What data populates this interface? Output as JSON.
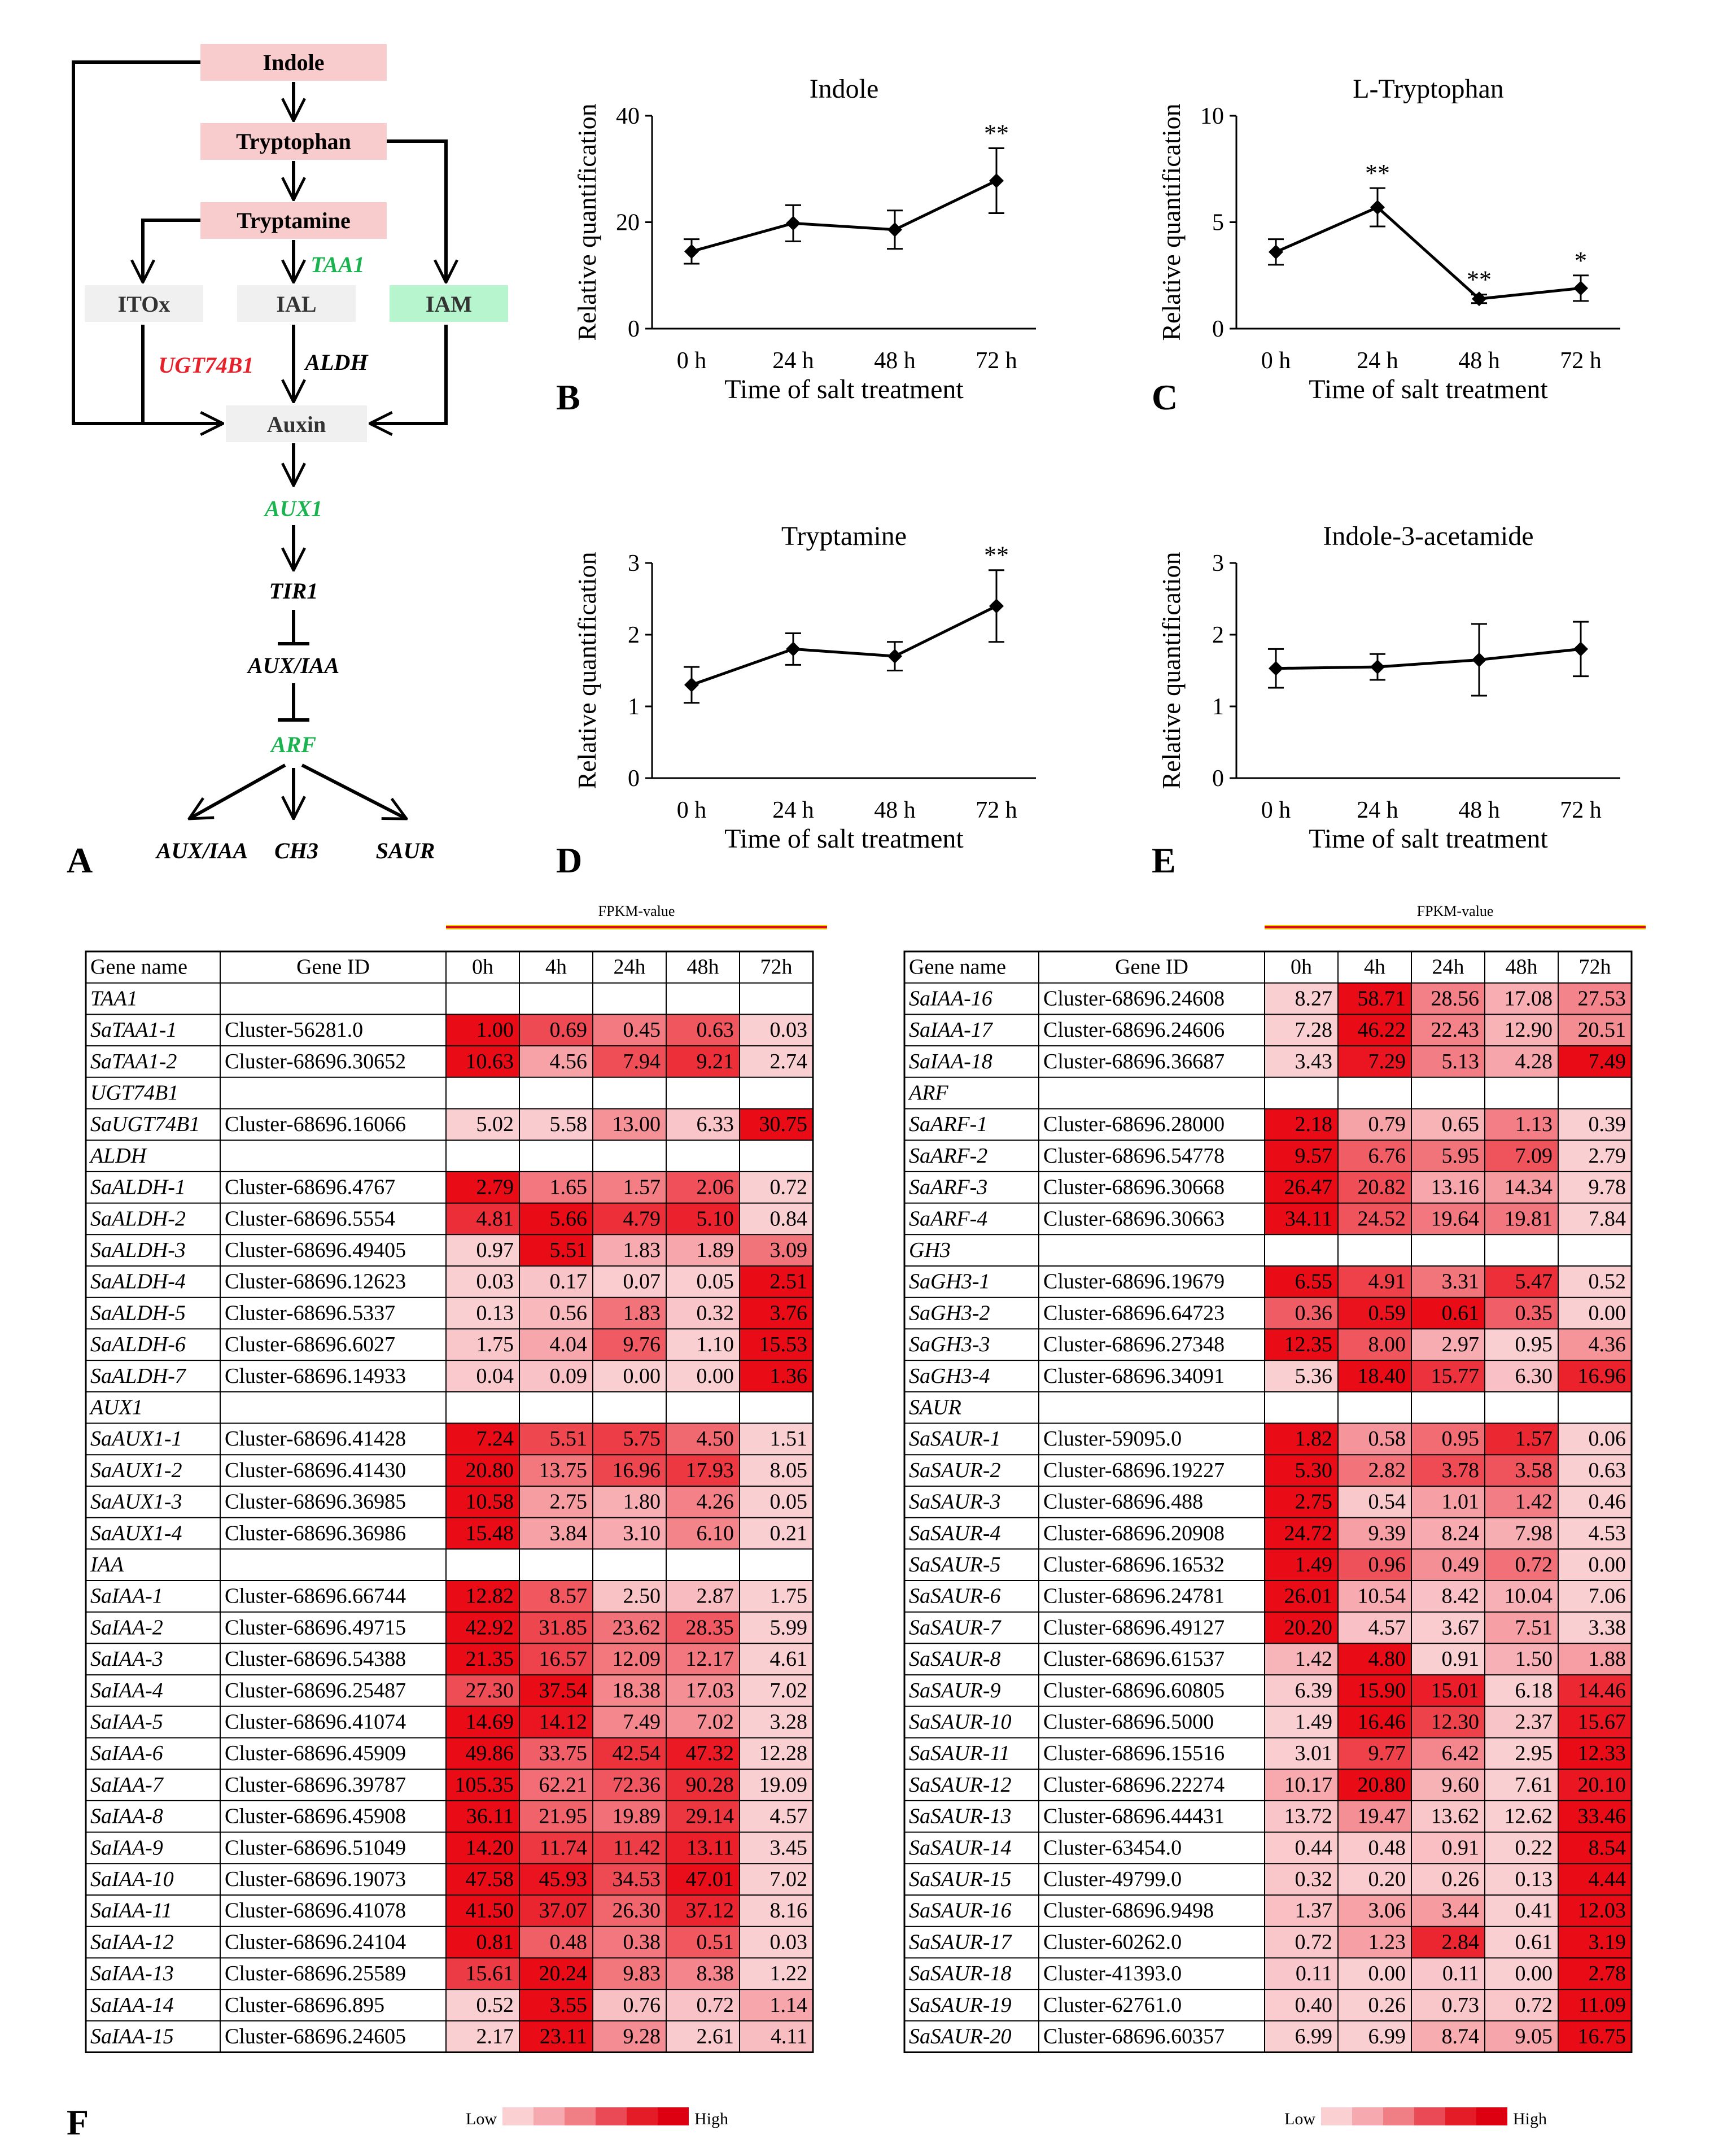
{
  "panel_letters": {
    "A": "A",
    "B": "B",
    "C": "C",
    "D": "D",
    "E": "E",
    "F": "F"
  },
  "pathway": {
    "indole": "Indole",
    "tryptophan": "Tryptophan",
    "tryptamine": "Tryptamine",
    "itox": "ITOx",
    "ial": "IAL",
    "iam": "IAM",
    "auxin": "Auxin",
    "taa1": "TAA1",
    "ugt74b1": "UGT74B1",
    "aldh": "ALDH",
    "aux1": "AUX1",
    "tir1": "TIR1",
    "auxiaa": "AUX/IAA",
    "arf": "ARF",
    "out1": "AUX/IAA",
    "out2": "CH3",
    "out3": "SAUR",
    "colors": {
      "metabolite": "#f8cccc",
      "iam": "#b7f5cf",
      "neutral": "#f0f0f0",
      "green": "#1bb350",
      "red": "#e8202a"
    }
  },
  "chart_data": [
    {
      "type": "line",
      "title": "Indole",
      "xlabel": "Time of salt treatment",
      "ylabel": "Relative quantification",
      "categories": [
        "0 h",
        "24 h",
        "48 h",
        "72 h"
      ],
      "values": [
        14.5,
        19.8,
        18.6,
        27.8
      ],
      "errors": [
        2.3,
        3.4,
        3.6,
        6.1
      ],
      "sig": [
        "",
        "",
        "",
        "**"
      ],
      "ylim": [
        0,
        40
      ],
      "yticks": [
        "0",
        "20",
        "40"
      ]
    },
    {
      "type": "line",
      "title": "L-Tryptophan",
      "xlabel": "Time of salt treatment",
      "ylabel": "Relative quantification",
      "categories": [
        "0 h",
        "24 h",
        "48 h",
        "72 h"
      ],
      "values": [
        3.6,
        5.7,
        1.4,
        1.9
      ],
      "errors": [
        0.6,
        0.9,
        0.2,
        0.6
      ],
      "sig": [
        "",
        "**",
        "**",
        "*"
      ],
      "ylim": [
        0,
        10
      ],
      "yticks": [
        "0",
        "5",
        "10"
      ]
    },
    {
      "type": "line",
      "title": "Tryptamine",
      "xlabel": "Time of salt treatment",
      "ylabel": "Relative quantification",
      "categories": [
        "0 h",
        "24 h",
        "48 h",
        "72 h"
      ],
      "values": [
        1.3,
        1.8,
        1.7,
        2.4
      ],
      "errors": [
        0.25,
        0.22,
        0.2,
        0.5
      ],
      "sig": [
        "",
        "",
        "",
        "**"
      ],
      "ylim": [
        0,
        3
      ],
      "yticks": [
        "0",
        "1",
        "2",
        "3"
      ]
    },
    {
      "type": "line",
      "title": "Indole-3-acetamide",
      "xlabel": "Time of salt treatment",
      "ylabel": "Relative quantification",
      "categories": [
        "0 h",
        "24 h",
        "48 h",
        "72 h"
      ],
      "values": [
        1.53,
        1.55,
        1.65,
        1.8
      ],
      "errors": [
        0.27,
        0.18,
        0.5,
        0.38
      ],
      "sig": [
        "",
        "",
        "",
        ""
      ],
      "ylim": [
        0,
        3
      ],
      "yticks": [
        "0",
        "1",
        "2",
        "3"
      ]
    }
  ],
  "heatmap": {
    "fpkm_label": "FPKM-value",
    "low_label": "Low",
    "high_label": "High",
    "headers": [
      "Gene name",
      "Gene ID",
      "0h",
      "4h",
      "24h",
      "48h",
      "72h"
    ],
    "left": [
      {
        "g": "TAA1"
      },
      {
        "n": "SaTAA1-1",
        "id": "Cluster-56281.0",
        "v": [
          "1.00",
          "0.69",
          "0.45",
          "0.63",
          "0.03"
        ]
      },
      {
        "n": "SaTAA1-2",
        "id": "Cluster-68696.30652",
        "v": [
          "10.63",
          "4.56",
          "7.94",
          "9.21",
          "2.74"
        ]
      },
      {
        "g": "UGT74B1"
      },
      {
        "n": "SaUGT74B1",
        "id": "Cluster-68696.16066",
        "v": [
          "5.02",
          "5.58",
          "13.00",
          "6.33",
          "30.75"
        ]
      },
      {
        "g": "ALDH"
      },
      {
        "n": "SaALDH-1",
        "id": "Cluster-68696.4767",
        "v": [
          "2.79",
          "1.65",
          "1.57",
          "2.06",
          "0.72"
        ]
      },
      {
        "n": "SaALDH-2",
        "id": "Cluster-68696.5554",
        "v": [
          "4.81",
          "5.66",
          "4.79",
          "5.10",
          "0.84"
        ]
      },
      {
        "n": "SaALDH-3",
        "id": "Cluster-68696.49405",
        "v": [
          "0.97",
          "5.51",
          "1.83",
          "1.89",
          "3.09"
        ]
      },
      {
        "n": "SaALDH-4",
        "id": "Cluster-68696.12623",
        "v": [
          "0.03",
          "0.17",
          "0.07",
          "0.05",
          "2.51"
        ]
      },
      {
        "n": "SaALDH-5",
        "id": "Cluster-68696.5337",
        "v": [
          "0.13",
          "0.56",
          "1.83",
          "0.32",
          "3.76"
        ]
      },
      {
        "n": "SaALDH-6",
        "id": "Cluster-68696.6027",
        "v": [
          "1.75",
          "4.04",
          "9.76",
          "1.10",
          "15.53"
        ]
      },
      {
        "n": "SaALDH-7",
        "id": "Cluster-68696.14933",
        "v": [
          "0.04",
          "0.09",
          "0.00",
          "0.00",
          "1.36"
        ]
      },
      {
        "g": "AUX1"
      },
      {
        "n": "SaAUX1-1",
        "id": "Cluster-68696.41428",
        "v": [
          "7.24",
          "5.51",
          "5.75",
          "4.50",
          "1.51"
        ]
      },
      {
        "n": "SaAUX1-2",
        "id": "Cluster-68696.41430",
        "v": [
          "20.80",
          "13.75",
          "16.96",
          "17.93",
          "8.05"
        ]
      },
      {
        "n": "SaAUX1-3",
        "id": "Cluster-68696.36985",
        "v": [
          "10.58",
          "2.75",
          "1.80",
          "4.26",
          "0.05"
        ]
      },
      {
        "n": "SaAUX1-4",
        "id": "Cluster-68696.36986",
        "v": [
          "15.48",
          "3.84",
          "3.10",
          "6.10",
          "0.21"
        ]
      },
      {
        "g": "IAA"
      },
      {
        "n": "SaIAA-1",
        "id": "Cluster-68696.66744",
        "v": [
          "12.82",
          "8.57",
          "2.50",
          "2.87",
          "1.75"
        ]
      },
      {
        "n": "SaIAA-2",
        "id": "Cluster-68696.49715",
        "v": [
          "42.92",
          "31.85",
          "23.62",
          "28.35",
          "5.99"
        ]
      },
      {
        "n": "SaIAA-3",
        "id": "Cluster-68696.54388",
        "v": [
          "21.35",
          "16.57",
          "12.09",
          "12.17",
          "4.61"
        ]
      },
      {
        "n": "SaIAA-4",
        "id": "Cluster-68696.25487",
        "v": [
          "27.30",
          "37.54",
          "18.38",
          "17.03",
          "7.02"
        ]
      },
      {
        "n": "SaIAA-5",
        "id": "Cluster-68696.41074",
        "v": [
          "14.69",
          "14.12",
          "7.49",
          "7.02",
          "3.28"
        ]
      },
      {
        "n": "SaIAA-6",
        "id": "Cluster-68696.45909",
        "v": [
          "49.86",
          "33.75",
          "42.54",
          "47.32",
          "12.28"
        ]
      },
      {
        "n": "SaIAA-7",
        "id": "Cluster-68696.39787",
        "v": [
          "105.35",
          "62.21",
          "72.36",
          "90.28",
          "19.09"
        ]
      },
      {
        "n": "SaIAA-8",
        "id": "Cluster-68696.45908",
        "v": [
          "36.11",
          "21.95",
          "19.89",
          "29.14",
          "4.57"
        ]
      },
      {
        "n": "SaIAA-9",
        "id": "Cluster-68696.51049",
        "v": [
          "14.20",
          "11.74",
          "11.42",
          "13.11",
          "3.45"
        ]
      },
      {
        "n": "SaIAA-10",
        "id": "Cluster-68696.19073",
        "v": [
          "47.58",
          "45.93",
          "34.53",
          "47.01",
          "7.02"
        ]
      },
      {
        "n": "SaIAA-11",
        "id": "Cluster-68696.41078",
        "v": [
          "41.50",
          "37.07",
          "26.30",
          "37.12",
          "8.16"
        ]
      },
      {
        "n": "SaIAA-12",
        "id": "Cluster-68696.24104",
        "v": [
          "0.81",
          "0.48",
          "0.38",
          "0.51",
          "0.03"
        ]
      },
      {
        "n": "SaIAA-13",
        "id": "Cluster-68696.25589",
        "v": [
          "15.61",
          "20.24",
          "9.83",
          "8.38",
          "1.22"
        ]
      },
      {
        "n": "SaIAA-14",
        "id": "Cluster-68696.895",
        "v": [
          "0.52",
          "3.55",
          "0.76",
          "0.72",
          "1.14"
        ]
      },
      {
        "n": "SaIAA-15",
        "id": "Cluster-68696.24605",
        "v": [
          "2.17",
          "23.11",
          "9.28",
          "2.61",
          "4.11"
        ]
      }
    ],
    "right": [
      {
        "n": "SaIAA-16",
        "id": "Cluster-68696.24608",
        "v": [
          "8.27",
          "58.71",
          "28.56",
          "17.08",
          "27.53"
        ]
      },
      {
        "n": "SaIAA-17",
        "id": "Cluster-68696.24606",
        "v": [
          "7.28",
          "46.22",
          "22.43",
          "12.90",
          "20.51"
        ]
      },
      {
        "n": "SaIAA-18",
        "id": "Cluster-68696.36687",
        "v": [
          "3.43",
          "7.29",
          "5.13",
          "4.28",
          "7.49"
        ]
      },
      {
        "g": "ARF"
      },
      {
        "n": "SaARF-1",
        "id": "Cluster-68696.28000",
        "v": [
          "2.18",
          "0.79",
          "0.65",
          "1.13",
          "0.39"
        ]
      },
      {
        "n": "SaARF-2",
        "id": "Cluster-68696.54778",
        "v": [
          "9.57",
          "6.76",
          "5.95",
          "7.09",
          "2.79"
        ]
      },
      {
        "n": "SaARF-3",
        "id": "Cluster-68696.30668",
        "v": [
          "26.47",
          "20.82",
          "13.16",
          "14.34",
          "9.78"
        ]
      },
      {
        "n": "SaARF-4",
        "id": "Cluster-68696.30663",
        "v": [
          "34.11",
          "24.52",
          "19.64",
          "19.81",
          "7.84"
        ]
      },
      {
        "g": "GH3"
      },
      {
        "n": "SaGH3-1",
        "id": "Cluster-68696.19679",
        "v": [
          "6.55",
          "4.91",
          "3.31",
          "5.47",
          "0.52"
        ]
      },
      {
        "n": "SaGH3-2",
        "id": "Cluster-68696.64723",
        "v": [
          "0.36",
          "0.59",
          "0.61",
          "0.35",
          "0.00"
        ]
      },
      {
        "n": "SaGH3-3",
        "id": "Cluster-68696.27348",
        "v": [
          "12.35",
          "8.00",
          "2.97",
          "0.95",
          "4.36"
        ]
      },
      {
        "n": "SaGH3-4",
        "id": "Cluster-68696.34091",
        "v": [
          "5.36",
          "18.40",
          "15.77",
          "6.30",
          "16.96"
        ]
      },
      {
        "g": "SAUR"
      },
      {
        "n": "SaSAUR-1",
        "id": "Cluster-59095.0",
        "v": [
          "1.82",
          "0.58",
          "0.95",
          "1.57",
          "0.06"
        ]
      },
      {
        "n": "SaSAUR-2",
        "id": "Cluster-68696.19227",
        "v": [
          "5.30",
          "2.82",
          "3.78",
          "3.58",
          "0.63"
        ]
      },
      {
        "n": "SaSAUR-3",
        "id": "Cluster-68696.488",
        "v": [
          "2.75",
          "0.54",
          "1.01",
          "1.42",
          "0.46"
        ]
      },
      {
        "n": "SaSAUR-4",
        "id": "Cluster-68696.20908",
        "v": [
          "24.72",
          "9.39",
          "8.24",
          "7.98",
          "4.53"
        ]
      },
      {
        "n": "SaSAUR-5",
        "id": "Cluster-68696.16532",
        "v": [
          "1.49",
          "0.96",
          "0.49",
          "0.72",
          "0.00"
        ]
      },
      {
        "n": "SaSAUR-6",
        "id": "Cluster-68696.24781",
        "v": [
          "26.01",
          "10.54",
          "8.42",
          "10.04",
          "7.06"
        ]
      },
      {
        "n": "SaSAUR-7",
        "id": "Cluster-68696.49127",
        "v": [
          "20.20",
          "4.57",
          "3.67",
          "7.51",
          "3.38"
        ]
      },
      {
        "n": "SaSAUR-8",
        "id": "Cluster-68696.61537",
        "v": [
          "1.42",
          "4.80",
          "0.91",
          "1.50",
          "1.88"
        ]
      },
      {
        "n": "SaSAUR-9",
        "id": "Cluster-68696.60805",
        "v": [
          "6.39",
          "15.90",
          "15.01",
          "6.18",
          "14.46"
        ]
      },
      {
        "n": "SaSAUR-10",
        "id": "Cluster-68696.5000",
        "v": [
          "1.49",
          "16.46",
          "12.30",
          "2.37",
          "15.67"
        ]
      },
      {
        "n": "SaSAUR-11",
        "id": "Cluster-68696.15516",
        "v": [
          "3.01",
          "9.77",
          "6.42",
          "2.95",
          "12.33"
        ]
      },
      {
        "n": "SaSAUR-12",
        "id": "Cluster-68696.22274",
        "v": [
          "10.17",
          "20.80",
          "9.60",
          "7.61",
          "20.10"
        ]
      },
      {
        "n": "SaSAUR-13",
        "id": "Cluster-68696.44431",
        "v": [
          "13.72",
          "19.47",
          "13.62",
          "12.62",
          "33.46"
        ]
      },
      {
        "n": "SaSAUR-14",
        "id": "Cluster-63454.0",
        "v": [
          "0.44",
          "0.48",
          "0.91",
          "0.22",
          "8.54"
        ]
      },
      {
        "n": "SaSAUR-15",
        "id": "Cluster-49799.0",
        "v": [
          "0.32",
          "0.20",
          "0.26",
          "0.13",
          "4.44"
        ]
      },
      {
        "n": "SaSAUR-16",
        "id": "Cluster-68696.9498",
        "v": [
          "1.37",
          "3.06",
          "3.44",
          "0.41",
          "12.03"
        ]
      },
      {
        "n": "SaSAUR-17",
        "id": "Cluster-60262.0",
        "v": [
          "0.72",
          "1.23",
          "2.84",
          "0.61",
          "3.19"
        ]
      },
      {
        "n": "SaSAUR-18",
        "id": "Cluster-41393.0",
        "v": [
          "0.11",
          "0.00",
          "0.11",
          "0.00",
          "2.78"
        ]
      },
      {
        "n": "SaSAUR-19",
        "id": "Cluster-62761.0",
        "v": [
          "0.40",
          "0.26",
          "0.73",
          "0.72",
          "11.09"
        ]
      },
      {
        "n": "SaSAUR-20",
        "id": "Cluster-68696.60357",
        "v": [
          "6.99",
          "6.99",
          "8.74",
          "9.05",
          "16.75"
        ]
      }
    ]
  }
}
